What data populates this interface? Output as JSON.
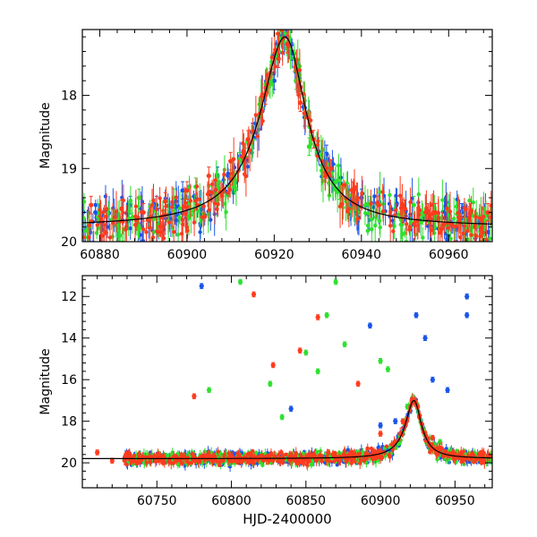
{
  "colors": {
    "red": "#ff3b1e",
    "green": "#2fe02f",
    "blue": "#1a55e8",
    "model": "#000000"
  },
  "chart_data": [
    {
      "type": "scatter",
      "panel": "top",
      "title": "",
      "xlabel": "",
      "ylabel": "Magnitude",
      "xlim": [
        60876,
        60970
      ],
      "ylim": [
        20,
        17.1
      ],
      "y_inverted": true,
      "xticks": [
        60880,
        60900,
        60920,
        60940,
        60960
      ],
      "yticks": [
        18,
        19,
        20
      ],
      "series": [
        {
          "name": "red",
          "color": "#ff3b1e",
          "errorbars": true,
          "points": [
            [
              60878,
              19.5
            ],
            [
              60885,
              19.55
            ],
            [
              60890,
              19.6
            ],
            [
              60895,
              19.45
            ],
            [
              60900,
              19.3
            ],
            [
              60905,
              19.1
            ],
            [
              60910,
              18.9
            ],
            [
              60914,
              18.6
            ],
            [
              60918,
              18.0
            ],
            [
              60921,
              17.5
            ],
            [
              60923,
              17.3
            ],
            [
              60926,
              18.1
            ],
            [
              60929,
              18.6
            ],
            [
              60933,
              19.0
            ],
            [
              60938,
              19.3
            ],
            [
              60944,
              19.5
            ],
            [
              60950,
              19.55
            ],
            [
              60957,
              19.6
            ],
            [
              60965,
              19.6
            ],
            [
              60969,
              19.6
            ]
          ]
        },
        {
          "name": "green",
          "color": "#2fe02f",
          "errorbars": true,
          "points": [
            [
              60880,
              19.6
            ],
            [
              60889,
              19.4
            ],
            [
              60897,
              19.4
            ],
            [
              60902,
              19.25
            ],
            [
              60912,
              18.9
            ],
            [
              60917,
              18.2
            ],
            [
              60921,
              17.4
            ],
            [
              60925,
              17.8
            ],
            [
              60928,
              18.7
            ],
            [
              60935,
              19.3
            ],
            [
              60942,
              19.5
            ],
            [
              60952,
              19.5
            ],
            [
              60960,
              19.6
            ]
          ]
        },
        {
          "name": "blue",
          "color": "#1a55e8",
          "errorbars": true,
          "points": [
            [
              60879,
              19.6
            ],
            [
              60887,
              19.5
            ],
            [
              60893,
              19.5
            ],
            [
              60899,
              19.3
            ],
            [
              60907,
              19.1
            ],
            [
              60915,
              18.5
            ],
            [
              60920,
              17.8
            ],
            [
              60924,
              17.4
            ],
            [
              60927,
              18.3
            ],
            [
              60932,
              18.8
            ],
            [
              60940,
              19.4
            ],
            [
              60948,
              19.5
            ],
            [
              60955,
              19.6
            ],
            [
              60963,
              19.6
            ]
          ]
        }
      ],
      "model_curve": {
        "name": "model",
        "peak_x": 60922.5,
        "peak_y": 17.2,
        "base_y": 19.8
      }
    },
    {
      "type": "scatter",
      "panel": "bottom",
      "title": "",
      "xlabel": "HJD-2400000",
      "ylabel": "Magnitude",
      "xlim": [
        60700,
        60975
      ],
      "ylim": [
        21.2,
        11
      ],
      "y_inverted": true,
      "xticks": [
        60750,
        60800,
        60850,
        60900,
        60950
      ],
      "yticks": [
        12,
        14,
        16,
        18,
        20
      ],
      "series": [
        {
          "name": "red",
          "color": "#ff3b1e",
          "errorbars": true,
          "points": [
            [
              60710,
              19.5
            ],
            [
              60720,
              19.9
            ],
            [
              60730,
              19.7
            ],
            [
              60750,
              19.8
            ],
            [
              60775,
              16.8
            ],
            [
              60800,
              19.7
            ],
            [
              60815,
              11.9
            ],
            [
              60828,
              15.3
            ],
            [
              60846,
              14.6
            ],
            [
              60858,
              13.0
            ],
            [
              60865,
              19.5
            ],
            [
              60885,
              16.2
            ],
            [
              60900,
              18.6
            ],
            [
              60915,
              18.0
            ],
            [
              60921,
              17.0
            ],
            [
              60925,
              17.3
            ],
            [
              60935,
              18.8
            ],
            [
              60950,
              19.6
            ],
            [
              60968,
              19.7
            ]
          ]
        },
        {
          "name": "green",
          "color": "#2fe02f",
          "errorbars": true,
          "points": [
            [
              60750,
              19.7
            ],
            [
              60785,
              16.5
            ],
            [
              60806,
              11.3
            ],
            [
              60826,
              16.2
            ],
            [
              60834,
              17.8
            ],
            [
              60850,
              14.7
            ],
            [
              60858,
              15.6
            ],
            [
              60864,
              12.9
            ],
            [
              60870,
              11.3
            ],
            [
              60876,
              14.3
            ],
            [
              60900,
              15.1
            ],
            [
              60905,
              15.5
            ],
            [
              60918,
              17.3
            ],
            [
              60922,
              16.9
            ],
            [
              60940,
              19.0
            ],
            [
              60960,
              19.6
            ]
          ]
        },
        {
          "name": "blue",
          "color": "#1a55e8",
          "errorbars": true,
          "points": [
            [
              60750,
              19.8
            ],
            [
              60780,
              11.5
            ],
            [
              60800,
              19.6
            ],
            [
              60840,
              17.4
            ],
            [
              60880,
              19.7
            ],
            [
              60893,
              13.4
            ],
            [
              60900,
              18.2
            ],
            [
              60910,
              18.0
            ],
            [
              60920,
              17.5
            ],
            [
              60924,
              12.9
            ],
            [
              60930,
              14.0
            ],
            [
              60935,
              16.0
            ],
            [
              60945,
              16.5
            ],
            [
              60958,
              12.9
            ],
            [
              60958,
              12.0
            ],
            [
              60965,
              19.8
            ]
          ]
        }
      ],
      "model_curve": {
        "name": "model",
        "peak_x": 60922.5,
        "peak_y": 17.0,
        "base_y": 19.8
      }
    }
  ]
}
